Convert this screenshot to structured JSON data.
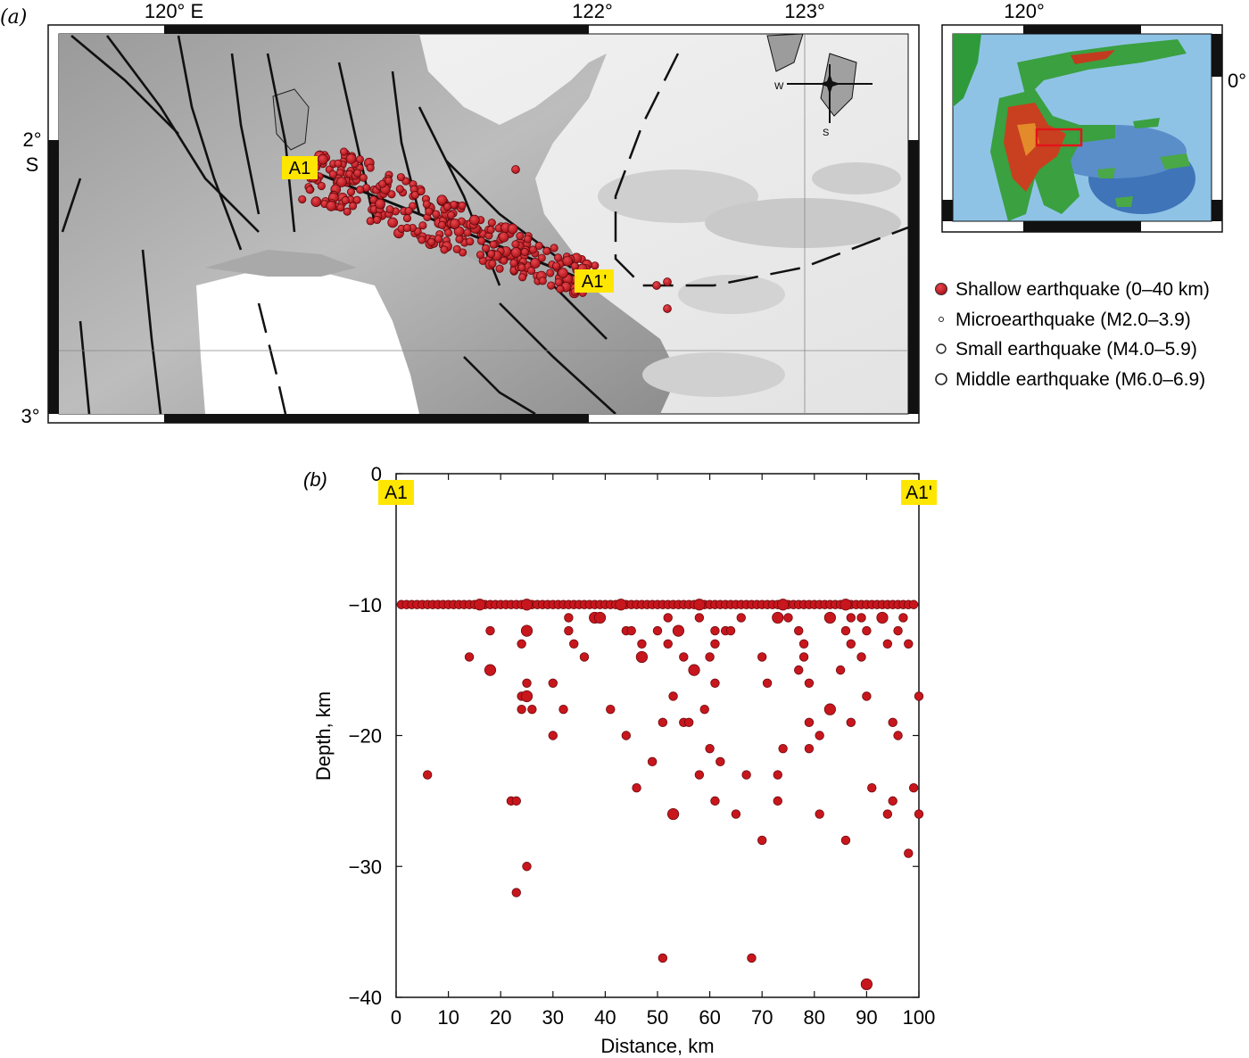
{
  "panel_a": {
    "label": "(a)",
    "lon_ticks": [
      "120° E",
      "122°",
      "123°"
    ],
    "lat_ticks": [
      "2°",
      "S",
      "3°"
    ],
    "profile_start": "A1",
    "profile_end": "A1'",
    "compass": {
      "west": "W",
      "south": "S"
    },
    "inset": {
      "lon_tick": "120°",
      "lat_tick": "0°"
    },
    "legend": [
      {
        "label": "Shallow earthquake (0–40 km)",
        "symbol": "filled-red",
        "color": "#c8161d"
      },
      {
        "label": "Microearthquake (M2.0–3.9)",
        "symbol": "tiny-circle"
      },
      {
        "label": "Small earthquake (M4.0–5.9)",
        "symbol": "small-circle"
      },
      {
        "label": "Middle earthquake (M6.0–6.9)",
        "symbol": "middle-circle"
      }
    ]
  },
  "chart_data": {
    "type": "scatter",
    "panel_label": "(b)",
    "xlabel": "Distance, km",
    "ylabel": "Depth, km",
    "xlim": [
      0,
      100
    ],
    "ylim": [
      -40,
      0
    ],
    "x_ticks": [
      0,
      10,
      20,
      30,
      40,
      50,
      60,
      70,
      80,
      90,
      100
    ],
    "y_ticks": [
      0,
      -10,
      -20,
      -30,
      -40
    ],
    "y_tick_labels": [
      "0",
      "−10",
      "−20",
      "−30",
      "−40"
    ],
    "profile_start": "A1",
    "profile_end": "A1'",
    "marker_color": "#c8161d",
    "series": [
      {
        "points": [
          [
            1,
            -10,
            1
          ],
          [
            2,
            -10,
            1
          ],
          [
            3,
            -10,
            1
          ],
          [
            4,
            -10,
            1
          ],
          [
            5,
            -10,
            1
          ],
          [
            6,
            -10,
            1
          ],
          [
            7,
            -10,
            1
          ],
          [
            8,
            -10,
            1
          ],
          [
            9,
            -10,
            1
          ],
          [
            10,
            -10,
            1
          ],
          [
            11,
            -10,
            1
          ],
          [
            12,
            -10,
            1
          ],
          [
            13,
            -10,
            1
          ],
          [
            14,
            -10,
            1
          ],
          [
            15,
            -10,
            1
          ],
          [
            16,
            -10,
            1
          ],
          [
            17,
            -10,
            1
          ],
          [
            18,
            -10,
            1
          ],
          [
            19,
            -10,
            1
          ],
          [
            20,
            -10,
            1
          ],
          [
            21,
            -10,
            1
          ],
          [
            22,
            -10,
            1
          ],
          [
            23,
            -10,
            1
          ],
          [
            24,
            -10,
            1
          ],
          [
            25,
            -10,
            1
          ],
          [
            26,
            -10,
            1
          ],
          [
            27,
            -10,
            1
          ],
          [
            28,
            -10,
            1
          ],
          [
            29,
            -10,
            1
          ],
          [
            30,
            -10,
            1
          ],
          [
            31,
            -10,
            1
          ],
          [
            32,
            -10,
            1
          ],
          [
            33,
            -10,
            1
          ],
          [
            34,
            -10,
            1
          ],
          [
            35,
            -10,
            1
          ],
          [
            36,
            -10,
            1
          ],
          [
            37,
            -10,
            1
          ],
          [
            38,
            -10,
            1
          ],
          [
            39,
            -10,
            1
          ],
          [
            40,
            -10,
            1
          ],
          [
            41,
            -10,
            1
          ],
          [
            42,
            -10,
            1
          ],
          [
            43,
            -10,
            1
          ],
          [
            44,
            -10,
            1
          ],
          [
            45,
            -10,
            1
          ],
          [
            46,
            -10,
            1
          ],
          [
            47,
            -10,
            1
          ],
          [
            48,
            -10,
            1
          ],
          [
            49,
            -10,
            1
          ],
          [
            50,
            -10,
            1
          ],
          [
            51,
            -10,
            1
          ],
          [
            52,
            -10,
            1
          ],
          [
            53,
            -10,
            1
          ],
          [
            54,
            -10,
            1
          ],
          [
            55,
            -10,
            1
          ],
          [
            56,
            -10,
            1
          ],
          [
            57,
            -10,
            1
          ],
          [
            58,
            -10,
            1
          ],
          [
            59,
            -10,
            1
          ],
          [
            60,
            -10,
            1
          ],
          [
            61,
            -10,
            1
          ],
          [
            62,
            -10,
            1
          ],
          [
            63,
            -10,
            1
          ],
          [
            64,
            -10,
            1
          ],
          [
            65,
            -10,
            1
          ],
          [
            66,
            -10,
            1
          ],
          [
            67,
            -10,
            1
          ],
          [
            68,
            -10,
            1
          ],
          [
            69,
            -10,
            1
          ],
          [
            70,
            -10,
            1
          ],
          [
            71,
            -10,
            1
          ],
          [
            72,
            -10,
            1
          ],
          [
            73,
            -10,
            1
          ],
          [
            74,
            -10,
            1
          ],
          [
            75,
            -10,
            1
          ],
          [
            76,
            -10,
            1
          ],
          [
            77,
            -10,
            1
          ],
          [
            78,
            -10,
            1
          ],
          [
            79,
            -10,
            1
          ],
          [
            80,
            -10,
            1
          ],
          [
            81,
            -10,
            1
          ],
          [
            82,
            -10,
            1
          ],
          [
            83,
            -10,
            1
          ],
          [
            84,
            -10,
            1
          ],
          [
            85,
            -10,
            1
          ],
          [
            86,
            -10,
            1
          ],
          [
            87,
            -10,
            1
          ],
          [
            88,
            -10,
            1
          ],
          [
            89,
            -10,
            1
          ],
          [
            90,
            -10,
            1
          ],
          [
            91,
            -10,
            1
          ],
          [
            92,
            -10,
            1
          ],
          [
            93,
            -10,
            1
          ],
          [
            94,
            -10,
            1
          ],
          [
            95,
            -10,
            1
          ],
          [
            96,
            -10,
            1
          ],
          [
            97,
            -10,
            1
          ],
          [
            98,
            -10,
            1
          ],
          [
            99,
            -10,
            1
          ],
          [
            16,
            -10,
            2
          ],
          [
            25,
            -10,
            2
          ],
          [
            43,
            -10,
            2
          ],
          [
            58,
            -10,
            2
          ],
          [
            74,
            -10,
            2
          ],
          [
            86,
            -10,
            2
          ],
          [
            33,
            -11,
            1
          ],
          [
            38,
            -11,
            2
          ],
          [
            39,
            -11,
            2
          ],
          [
            52,
            -11,
            1
          ],
          [
            58,
            -11,
            1
          ],
          [
            66,
            -11,
            1
          ],
          [
            73,
            -11,
            2
          ],
          [
            75,
            -11,
            1
          ],
          [
            83,
            -11,
            2
          ],
          [
            87,
            -11,
            1
          ],
          [
            89,
            -11,
            1
          ],
          [
            93,
            -11,
            2
          ],
          [
            97,
            -11,
            1
          ],
          [
            18,
            -12,
            1
          ],
          [
            25,
            -12,
            2
          ],
          [
            33,
            -12,
            1
          ],
          [
            44,
            -12,
            1
          ],
          [
            45,
            -12,
            1
          ],
          [
            50,
            -12,
            1
          ],
          [
            54,
            -12,
            2
          ],
          [
            61,
            -12,
            1
          ],
          [
            63,
            -12,
            1
          ],
          [
            64,
            -12,
            1
          ],
          [
            77,
            -12,
            1
          ],
          [
            86,
            -12,
            1
          ],
          [
            90,
            -12,
            1
          ],
          [
            96,
            -12,
            1
          ],
          [
            24,
            -13,
            1
          ],
          [
            34,
            -13,
            1
          ],
          [
            47,
            -13,
            1
          ],
          [
            52,
            -13,
            1
          ],
          [
            61,
            -13,
            1
          ],
          [
            78,
            -13,
            1
          ],
          [
            87,
            -13,
            1
          ],
          [
            94,
            -13,
            1
          ],
          [
            98,
            -13,
            1
          ],
          [
            14,
            -14,
            1
          ],
          [
            36,
            -14,
            1
          ],
          [
            47,
            -14,
            2
          ],
          [
            55,
            -14,
            1
          ],
          [
            60,
            -14,
            1
          ],
          [
            70,
            -14,
            1
          ],
          [
            78,
            -14,
            1
          ],
          [
            89,
            -14,
            1
          ],
          [
            18,
            -15,
            2
          ],
          [
            57,
            -15,
            2
          ],
          [
            77,
            -15,
            1
          ],
          [
            85,
            -15,
            1
          ],
          [
            25,
            -16,
            1
          ],
          [
            30,
            -16,
            1
          ],
          [
            61,
            -16,
            1
          ],
          [
            71,
            -16,
            1
          ],
          [
            79,
            -16,
            1
          ],
          [
            24,
            -17,
            1
          ],
          [
            25,
            -17,
            2
          ],
          [
            53,
            -17,
            1
          ],
          [
            90,
            -17,
            1
          ],
          [
            100,
            -17,
            1
          ],
          [
            24,
            -18,
            1
          ],
          [
            26,
            -18,
            1
          ],
          [
            32,
            -18,
            1
          ],
          [
            41,
            -18,
            1
          ],
          [
            59,
            -18,
            1
          ],
          [
            83,
            -18,
            2
          ],
          [
            51,
            -19,
            1
          ],
          [
            55,
            -19,
            1
          ],
          [
            56,
            -19,
            1
          ],
          [
            79,
            -19,
            1
          ],
          [
            87,
            -19,
            1
          ],
          [
            95,
            -19,
            1
          ],
          [
            30,
            -20,
            1
          ],
          [
            44,
            -20,
            1
          ],
          [
            81,
            -20,
            1
          ],
          [
            96,
            -20,
            1
          ],
          [
            60,
            -21,
            1
          ],
          [
            74,
            -21,
            1
          ],
          [
            79,
            -21,
            1
          ],
          [
            49,
            -22,
            1
          ],
          [
            62,
            -22,
            1
          ],
          [
            6,
            -23,
            1
          ],
          [
            58,
            -23,
            1
          ],
          [
            67,
            -23,
            1
          ],
          [
            73,
            -23,
            1
          ],
          [
            46,
            -24,
            1
          ],
          [
            91,
            -24,
            1
          ],
          [
            99,
            -24,
            1
          ],
          [
            22,
            -25,
            1
          ],
          [
            23,
            -25,
            1
          ],
          [
            61,
            -25,
            1
          ],
          [
            73,
            -25,
            1
          ],
          [
            95,
            -25,
            1
          ],
          [
            53,
            -26,
            2
          ],
          [
            65,
            -26,
            1
          ],
          [
            81,
            -26,
            1
          ],
          [
            94,
            -26,
            1
          ],
          [
            100,
            -26,
            1
          ],
          [
            70,
            -28,
            1
          ],
          [
            86,
            -28,
            1
          ],
          [
            98,
            -29,
            1
          ],
          [
            25,
            -30,
            1
          ],
          [
            23,
            -32,
            1
          ],
          [
            51,
            -37,
            1
          ],
          [
            68,
            -37,
            1
          ],
          [
            90,
            -39,
            2
          ]
        ]
      }
    ]
  }
}
